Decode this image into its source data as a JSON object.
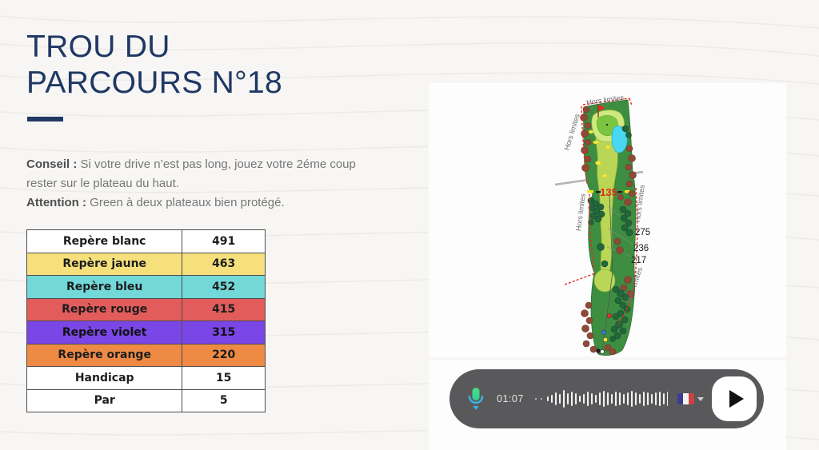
{
  "page": {
    "title_line1": "TROU DU",
    "title_line2": "PARCOURS N°18",
    "conseil_label": "Conseil :",
    "conseil_text": " Si votre drive n’est pas long, jouez votre 2éme coup rester sur le plateau du haut.",
    "attention_label": "Attention :",
    "attention_text": " Green à deux plateaux bien protégé."
  },
  "table": {
    "rows": [
      {
        "label": "Repère blanc",
        "value": "491",
        "color": "#ffffff"
      },
      {
        "label": "Repère jaune",
        "value": "463",
        "color": "#f5e07c"
      },
      {
        "label": "Repère bleu",
        "value": "452",
        "color": "#72d8d8"
      },
      {
        "label": "Repère rouge",
        "value": "415",
        "color": "#e25c5c"
      },
      {
        "label": "Repère violet",
        "value": "315",
        "color": "#7b46e6"
      },
      {
        "label": "Repère orange",
        "value": "220",
        "color": "#ee8a44"
      },
      {
        "label": "Handicap",
        "value": "15",
        "color": "#ffffff"
      },
      {
        "label": "Par",
        "value": "5",
        "color": "#ffffff"
      }
    ]
  },
  "map": {
    "hors_limites": "Hors limites",
    "mid_distance": "135",
    "dist_1": "275",
    "dist_2": "236",
    "dist_3": "217"
  },
  "player": {
    "time": "01:07",
    "language": "french-flag",
    "waveform": [
      6,
      10,
      16,
      12,
      22,
      14,
      18,
      14,
      8,
      12,
      18,
      14,
      10,
      16,
      20,
      16,
      12,
      18,
      16,
      12,
      16,
      20,
      16,
      12,
      18,
      16,
      12,
      16,
      18,
      14,
      18,
      14,
      10,
      16,
      10,
      6
    ]
  },
  "colors": {
    "accent_navy": "#1f3864",
    "pill_gray": "#59595b",
    "rough_green": "#3e8e41",
    "fairway_green": "#b9d657",
    "water_cyan": "#49d7f2",
    "out_of_bounds_red": "#e8281e"
  }
}
